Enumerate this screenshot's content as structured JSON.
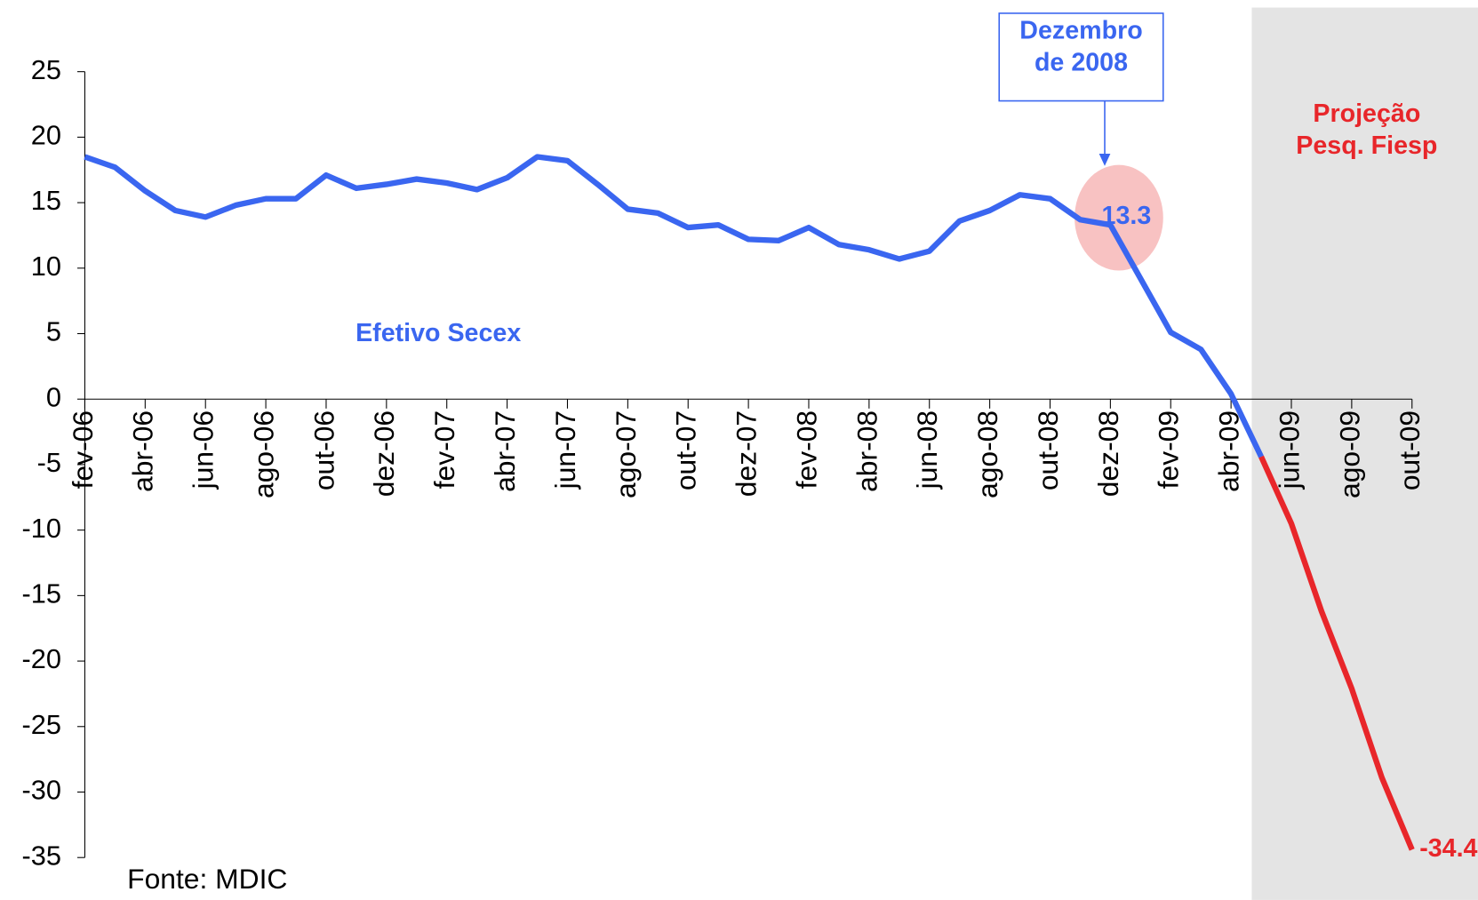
{
  "chart_data": {
    "type": "line",
    "categories": [
      "fev-06",
      null,
      "abr-06",
      null,
      "jun-06",
      null,
      "ago-06",
      null,
      "out-06",
      null,
      "dez-06",
      null,
      "fev-07",
      null,
      "abr-07",
      null,
      "jun-07",
      null,
      "ago-07",
      null,
      "out-07",
      null,
      "dez-07",
      null,
      "fev-08",
      null,
      "abr-08",
      null,
      "jun-08",
      null,
      "ago-08",
      null,
      "out-08",
      null,
      "dez-08",
      null,
      "fev-09",
      null,
      "abr-09",
      null,
      "jun-09",
      null,
      "ago-09",
      null,
      "out-09"
    ],
    "series": [
      {
        "name": "Efetivo Secex",
        "color": "#3a66f0",
        "values": [
          18.5,
          17.7,
          15.9,
          14.4,
          13.9,
          14.8,
          15.3,
          15.3,
          17.1,
          16.1,
          16.4,
          16.8,
          16.5,
          16.0,
          16.9,
          18.5,
          18.2,
          16.4,
          14.5,
          14.2,
          13.1,
          13.3,
          12.2,
          12.1,
          13.1,
          11.8,
          11.4,
          10.7,
          11.3,
          13.6,
          14.4,
          15.6,
          15.3,
          13.7,
          13.3,
          9.2,
          5.1,
          3.8,
          0.4,
          -4.4,
          null,
          null,
          null,
          null,
          null
        ]
      },
      {
        "name": "Projeção Pesq. Fiesp",
        "color": "#e8262a",
        "values": [
          null,
          null,
          null,
          null,
          null,
          null,
          null,
          null,
          null,
          null,
          null,
          null,
          null,
          null,
          null,
          null,
          null,
          null,
          null,
          null,
          null,
          null,
          null,
          null,
          null,
          null,
          null,
          null,
          null,
          null,
          null,
          null,
          null,
          null,
          null,
          null,
          null,
          null,
          null,
          -4.4,
          -9.5,
          -16.2,
          -22.1,
          -28.9,
          -34.4
        ]
      }
    ],
    "ylim": [
      -35,
      25
    ],
    "yticks": [
      -35,
      -30,
      -25,
      -20,
      -15,
      -10,
      -5,
      0,
      5,
      10,
      15,
      20,
      25
    ],
    "annotations": [
      "Dezembro de 2008"
    ],
    "source": "Fonte: MDIC"
  }
}
